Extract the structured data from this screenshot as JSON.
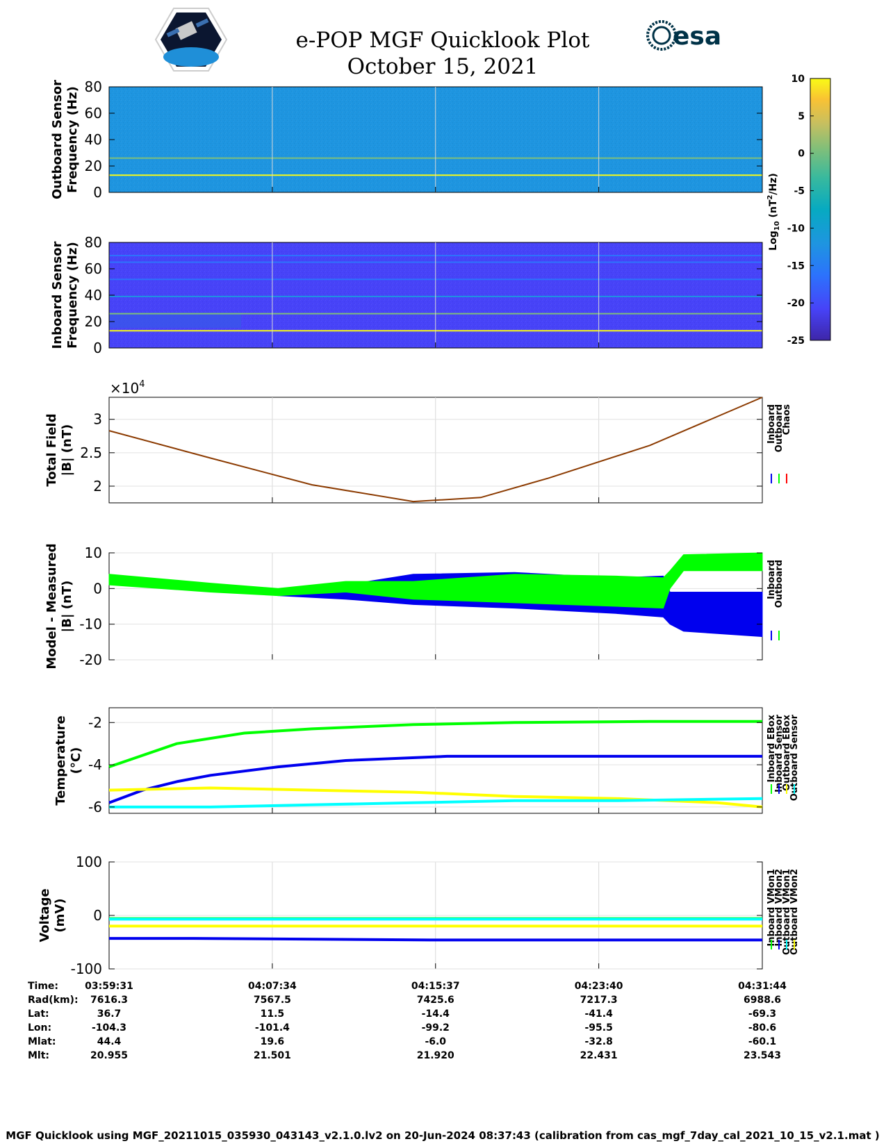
{
  "title": "e-POP MGF Quicklook Plot",
  "date": "October 15, 2021",
  "logos": {
    "left": "cassiope-mission-logo",
    "right_text": "esa"
  },
  "colors": {
    "blue": "#0000ee",
    "green": "#00ff00",
    "red": "#ff0000",
    "yellow": "#ffff00",
    "cyan": "#00ffff",
    "brown": "#8b3a00",
    "parula": [
      "#3e26a8",
      "#4743f8",
      "#2c73fc",
      "#1e95e0",
      "#07aac1",
      "#38b99e",
      "#7fbf7a",
      "#c8bf5f",
      "#f9c234",
      "#f9fb15"
    ]
  },
  "colorbar": {
    "ticks": [
      "10",
      "5",
      "0",
      "-5",
      "-10",
      "-15",
      "-20",
      "-25"
    ],
    "label": "Log10 (nT2/Hz)",
    "range": [
      -25,
      10
    ]
  },
  "time_axis": {
    "labels": [
      "03:59:31",
      "04:07:34",
      "04:15:37",
      "04:23:40",
      "04:31:44"
    ],
    "range_seconds": [
      0,
      1933
    ],
    "tick_seconds": [
      0,
      483,
      966,
      1449,
      1933
    ]
  },
  "chart_data": [
    {
      "type": "heatmap",
      "name": "outboard-spectrogram",
      "ylabel": [
        "Outboard Sensor",
        "Frequency (Hz)"
      ],
      "yticks": [
        "80",
        "60",
        "40",
        "20",
        "0"
      ],
      "ylim": [
        0,
        80
      ],
      "background_log_power": -12.5,
      "lines": [
        {
          "freq_hz": 13,
          "log_power": 9
        },
        {
          "freq_hz": 26,
          "log_power": 0
        }
      ]
    },
    {
      "type": "heatmap",
      "name": "inboard-spectrogram",
      "ylabel": [
        "Inboard Sensor",
        "Frequency (Hz)"
      ],
      "yticks": [
        "80",
        "60",
        "40",
        "20",
        "0"
      ],
      "ylim": [
        0,
        80
      ],
      "background_log_power": -22,
      "lines": [
        {
          "freq_hz": 13,
          "log_power": 9
        },
        {
          "freq_hz": 26,
          "log_power": 0
        },
        {
          "freq_hz": 39,
          "log_power": -15
        },
        {
          "freq_hz": 52,
          "log_power": -17
        },
        {
          "freq_hz": 65,
          "log_power": -16
        },
        {
          "freq_hz": 70,
          "log_power": -17
        }
      ]
    },
    {
      "type": "line",
      "name": "total-field",
      "ylabel": [
        "Total Field",
        "|B| (nT)"
      ],
      "multiplier_label": "×10",
      "multiplier_exp": "4",
      "yticks": [
        "3",
        "2.5",
        "2"
      ],
      "ylim": [
        1.75,
        3.33
      ],
      "legend": [
        "Inboard",
        "Outboard",
        "Chaos"
      ],
      "series": [
        {
          "name": "Inboard",
          "x": [
            0,
            300,
            600,
            900,
            1100,
            1300,
            1600,
            1933
          ],
          "y": [
            2.83,
            2.42,
            2.02,
            1.77,
            1.83,
            2.12,
            2.61,
            3.33
          ]
        }
      ]
    },
    {
      "type": "line",
      "name": "model-measured",
      "ylabel": [
        "Model - Measured",
        "|B| (nT)"
      ],
      "yticks": [
        "10",
        "0",
        "-10",
        "-20"
      ],
      "ylim": [
        -20,
        10
      ],
      "legend": [
        "Inboard",
        "Outboard"
      ],
      "series": [
        {
          "name": "Inboard",
          "x": [
            0,
            300,
            500,
            700,
            900,
            1200,
            1500,
            1640,
            1660,
            1700,
            1933
          ],
          "y": [
            2.5,
            0,
            -2,
            -3,
            -4.5,
            -5.5,
            -7,
            -8,
            -10,
            -12,
            -13.5
          ],
          "upper": [
            3.5,
            1,
            -1,
            1,
            4,
            4.5,
            3,
            3.5,
            -1,
            -1,
            -1
          ]
        },
        {
          "name": "Outboard",
          "x": [
            0,
            300,
            500,
            700,
            900,
            1200,
            1500,
            1640,
            1660,
            1700,
            1933
          ],
          "y": [
            1,
            -1,
            -2,
            -1,
            -3,
            -4,
            -5,
            -5.5,
            0,
            5,
            5
          ],
          "upper": [
            4,
            1.5,
            0,
            2,
            2,
            4,
            3.5,
            3,
            5,
            9.5,
            10
          ]
        }
      ]
    },
    {
      "type": "line",
      "name": "temperature",
      "ylabel": [
        "Temperature",
        "(°C)"
      ],
      "yticks": [
        "-2",
        "-4",
        "-6"
      ],
      "ylim": [
        -6.3,
        -1.3
      ],
      "legend": [
        "Inboard EBox",
        "Inboard Sensor",
        "Outboard EBox",
        "Outboard Sensor"
      ],
      "series": [
        {
          "name": "Inboard EBox",
          "x": [
            0,
            200,
            400,
            600,
            900,
            1200,
            1600,
            1933
          ],
          "y": [
            -4.1,
            -3.0,
            -2.5,
            -2.3,
            -2.1,
            -2.0,
            -1.95,
            -1.95
          ]
        },
        {
          "name": "Inboard Sensor",
          "x": [
            0,
            100,
            200,
            300,
            500,
            700,
            1000,
            1933
          ],
          "y": [
            -5.8,
            -5.2,
            -4.8,
            -4.5,
            -4.1,
            -3.8,
            -3.6,
            -3.6
          ]
        },
        {
          "name": "Outboard EBox",
          "x": [
            0,
            300,
            600,
            900,
            1200,
            1500,
            1800,
            1933
          ],
          "y": [
            -5.2,
            -5.1,
            -5.2,
            -5.3,
            -5.5,
            -5.6,
            -5.8,
            -6.0
          ]
        },
        {
          "name": "Outboard Sensor",
          "x": [
            0,
            300,
            600,
            900,
            1200,
            1500,
            1933
          ],
          "y": [
            -6.0,
            -6.0,
            -5.9,
            -5.8,
            -5.7,
            -5.7,
            -5.6
          ]
        }
      ]
    },
    {
      "type": "line",
      "name": "voltage",
      "ylabel": [
        "Voltage",
        "(mV)"
      ],
      "yticks": [
        "100",
        "0",
        "-100"
      ],
      "ylim": [
        -100,
        100
      ],
      "legend": [
        "Inboard VMon1",
        "Inboard VMon2",
        "Outboard VMon1",
        "Outboard VMon2"
      ],
      "series": [
        {
          "name": "Inboard VMon1",
          "x": [
            0,
            1933
          ],
          "y": [
            -6,
            -6
          ]
        },
        {
          "name": "Inboard VMon2",
          "x": [
            0,
            250,
            950,
            1933
          ],
          "y": [
            -43,
            -43,
            -46,
            -46
          ]
        },
        {
          "name": "Outboard VMon1",
          "x": [
            0,
            1933
          ],
          "y": [
            -7,
            -7
          ]
        },
        {
          "name": "Outboard VMon2",
          "x": [
            0,
            1933
          ],
          "y": [
            -20,
            -20
          ]
        }
      ]
    }
  ],
  "ephemeris": {
    "rows": [
      {
        "label": "Time:",
        "values": [
          "03:59:31",
          "04:07:34",
          "04:15:37",
          "04:23:40",
          "04:31:44"
        ]
      },
      {
        "label": "Rad(km):",
        "values": [
          "7616.3",
          "7567.5",
          "7425.6",
          "7217.3",
          "6988.6"
        ]
      },
      {
        "label": "Lat:",
        "values": [
          "36.7",
          "11.5",
          "-14.4",
          "-41.4",
          "-69.3"
        ]
      },
      {
        "label": "Lon:",
        "values": [
          "-104.3",
          "-101.4",
          "-99.2",
          "-95.5",
          "-80.6"
        ]
      },
      {
        "label": "Mlat:",
        "values": [
          "44.4",
          "19.6",
          "-6.0",
          "-32.8",
          "-60.1"
        ]
      },
      {
        "label": "Mlt:",
        "values": [
          "20.955",
          "21.501",
          "21.920",
          "22.431",
          "23.543"
        ]
      }
    ]
  },
  "footer": "MGF Quicklook using MGF_20211015_035930_043143_v2.1.0.lv2 on 20-Jun-2024 08:37:43 (calibration from cas_mgf_7day_cal_2021_10_15_v2.1.mat )"
}
